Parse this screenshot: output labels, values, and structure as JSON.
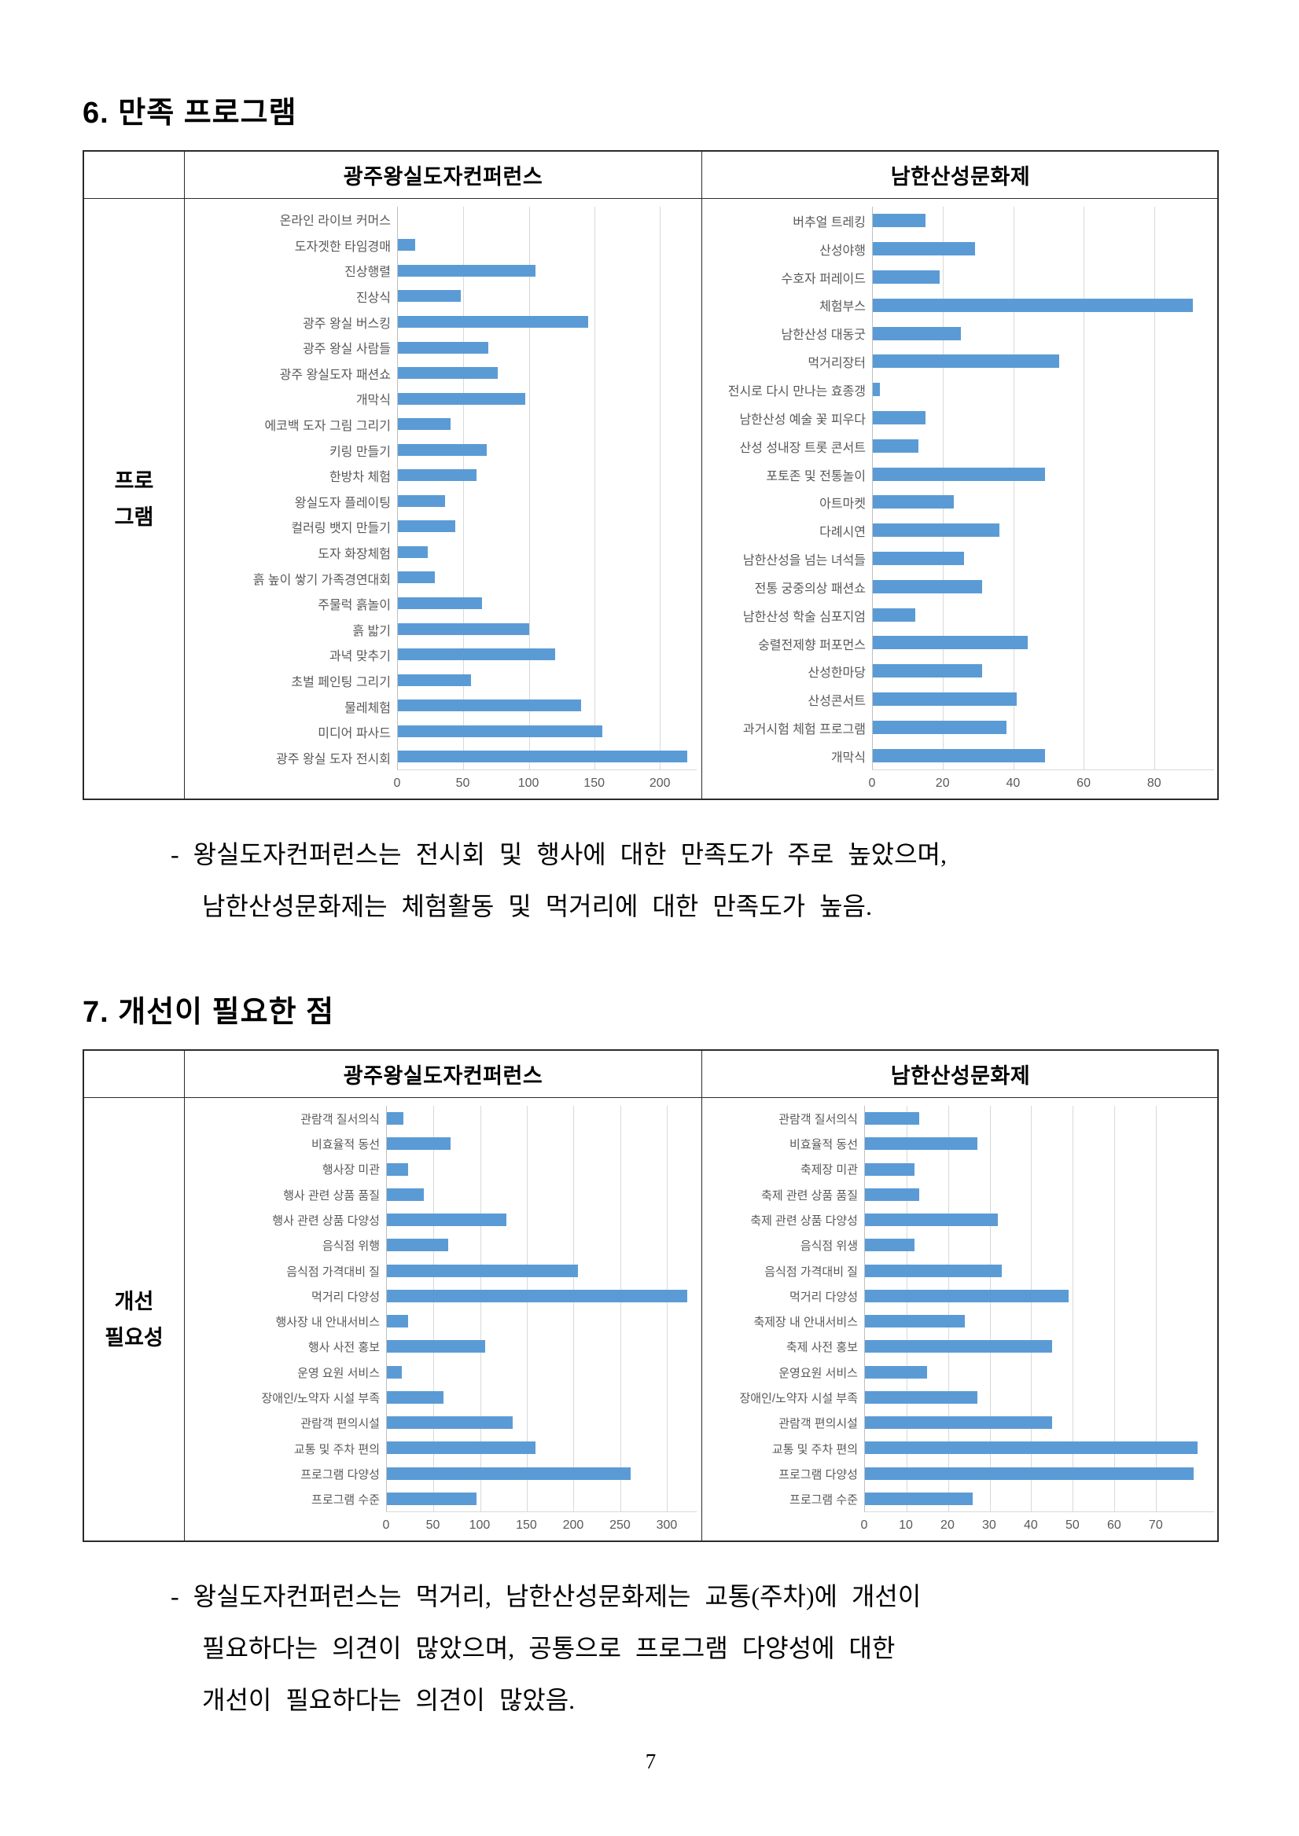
{
  "page": {
    "number": "7"
  },
  "section6": {
    "heading": "6. 만족 프로그램",
    "row_label": [
      "프로",
      "그램"
    ],
    "note_lines": [
      "- 왕실도자컨퍼런스는 전시회 및 행사에 대한 만족도가 주로 높았으며,",
      "남한산성문화제는 체험활동 및 먹거리에 대한 만족도가 높음."
    ]
  },
  "section7": {
    "heading": "7. 개선이 필요한 점",
    "row_label": [
      "개선",
      "필요성"
    ],
    "note_lines": [
      "- 왕실도자컨퍼런스는 먹거리, 남한산성문화제는 교통(주차)에 개선이",
      "필요하다는 의견이 많았으며, 공통으로 프로그램 다양성에 대한",
      "개선이 필요하다는 의견이 많았음."
    ]
  },
  "chart_data": [
    {
      "type": "bar",
      "orientation": "horizontal",
      "section": "6. 만족 프로그램",
      "title": "광주왕실도자컨퍼런스",
      "categories": [
        "온라인 라이브 커머스",
        "도자겟한 타임경매",
        "진상행렬",
        "진상식",
        "광주 왕실 버스킹",
        "광주 왕실 사람들",
        "광주 왕실도자 패션쇼",
        "개막식",
        "에코백 도자 그림 그리기",
        "키링 만들기",
        "한방차 체험",
        "왕실도자 플레이팅",
        "컬러링 뱃지 만들기",
        "도자 화장체험",
        "흙 높이 쌓기 가족경연대회",
        "주물럭 흙놀이",
        "흙 밟기",
        "과녁 맞추기",
        "초벌 페인팅 그리기",
        "물레체험",
        "미디어 파사드",
        "광주 왕실 도자 전시회"
      ],
      "values": [
        0,
        13,
        105,
        48,
        145,
        69,
        76,
        97,
        40,
        68,
        60,
        36,
        44,
        23,
        28,
        64,
        100,
        120,
        56,
        140,
        156,
        221
      ],
      "xticks": [
        0,
        50,
        100,
        150,
        200
      ],
      "xlim": [
        0,
        228
      ],
      "grid": true,
      "legend": false,
      "bar_color": "#5B9BD5"
    },
    {
      "type": "bar",
      "orientation": "horizontal",
      "section": "6. 만족 프로그램",
      "title": "남한산성문화제",
      "categories": [
        "버추얼 트레킹",
        "산성야행",
        "수호자 퍼레이드",
        "체험부스",
        "남한산성 대동굿",
        "먹거리장터",
        "전시로 다시 만나는 효종갱",
        "남한산성 예술 꽃 피우다",
        "산성 성내장 트롯 콘서트",
        "포토존 및 전통놀이",
        "아트마켓",
        "다례시연",
        "남한산성을 넘는 녀석들",
        "전통 궁중의상 패션쇼",
        "남한산성 학술 심포지엄",
        "숭렬전제향 퍼포먼스",
        "산성한마당",
        "산성콘서트",
        "과거시험 체험 프로그램",
        "개막식"
      ],
      "values": [
        15,
        29,
        19,
        91,
        25,
        53,
        2,
        15,
        13,
        49,
        23,
        36,
        26,
        31,
        12,
        44,
        31,
        41,
        38,
        49
      ],
      "xticks": [
        0,
        20,
        40,
        60,
        80
      ],
      "xlim": [
        0,
        97
      ],
      "grid": true,
      "legend": false,
      "bar_color": "#5B9BD5"
    },
    {
      "type": "bar",
      "orientation": "horizontal",
      "section": "7. 개선이 필요한 점",
      "title": "광주왕실도자컨퍼런스",
      "categories": [
        "관람객 질서의식",
        "비효율적 동선",
        "행사장 미관",
        "행사 관련 상품 품질",
        "행사 관련 상품 다양성",
        "음식점 위행",
        "음식점 가격대비 질",
        "먹거리 다양성",
        "행사장 내 안내서비스",
        "행사 사전 홍보",
        "운영 요원 서비스",
        "장애인/노약자 시설 부족",
        "관람객 편의시설",
        "교통 및 주차 편의",
        "프로그램 다양성",
        "프로그램 수준"
      ],
      "values": [
        18,
        68,
        23,
        40,
        128,
        66,
        205,
        322,
        23,
        105,
        16,
        61,
        135,
        159,
        261,
        96
      ],
      "xticks": [
        0,
        50,
        100,
        150,
        200,
        250,
        300
      ],
      "xlim": [
        0,
        332
      ],
      "grid": true,
      "legend": false,
      "bar_color": "#5B9BD5"
    },
    {
      "type": "bar",
      "orientation": "horizontal",
      "section": "7. 개선이 필요한 점",
      "title": "남한산성문화제",
      "categories": [
        "관람객 질서의식",
        "비효율적 동선",
        "축제장 미관",
        "축제 관련 상품 품질",
        "축제 관련 상품 다양성",
        "음식점 위생",
        "음식점 가격대비 질",
        "먹거리 다양성",
        "축제장 내 안내서비스",
        "축제 사전 홍보",
        "운영요원 서비스",
        "장애인/노약자 시설 부족",
        "관람객 편의시설",
        "교통 및 주차 편의",
        "프로그램 다양성",
        "프로그램 수준"
      ],
      "values": [
        13,
        27,
        12,
        13,
        32,
        12,
        33,
        49,
        24,
        45,
        15,
        27,
        45,
        80,
        79,
        26
      ],
      "xticks": [
        0,
        10,
        20,
        30,
        40,
        50,
        60,
        70
      ],
      "xlim": [
        0,
        84
      ],
      "grid": true,
      "legend": false,
      "bar_color": "#5B9BD5"
    }
  ]
}
